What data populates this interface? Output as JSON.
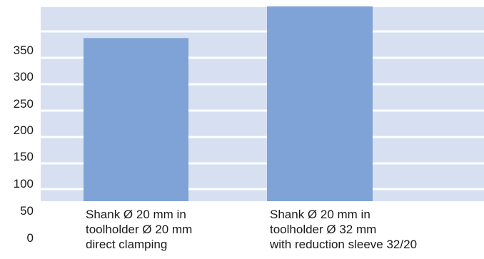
{
  "chart_data": {
    "type": "bar",
    "categories": [
      [
        "Shank Ø 20 mm in",
        "toolholder Ø 20 mm",
        "direct clamping"
      ],
      [
        "Shank Ø 20 mm in",
        "toolholder Ø 32 mm",
        "with reduction sleeve 32/20"
      ]
    ],
    "values": [
      335,
      400
    ],
    "ytick_labels": [
      "0",
      "50",
      "100",
      "150",
      "200",
      "250",
      "300",
      "350"
    ],
    "ylim": [
      0,
      400
    ],
    "grid": true,
    "legend": "none",
    "colors": {
      "bar": "#7fa3d6",
      "plot_background": "#d6e0f1",
      "grid_line": "#ffffff"
    }
  }
}
